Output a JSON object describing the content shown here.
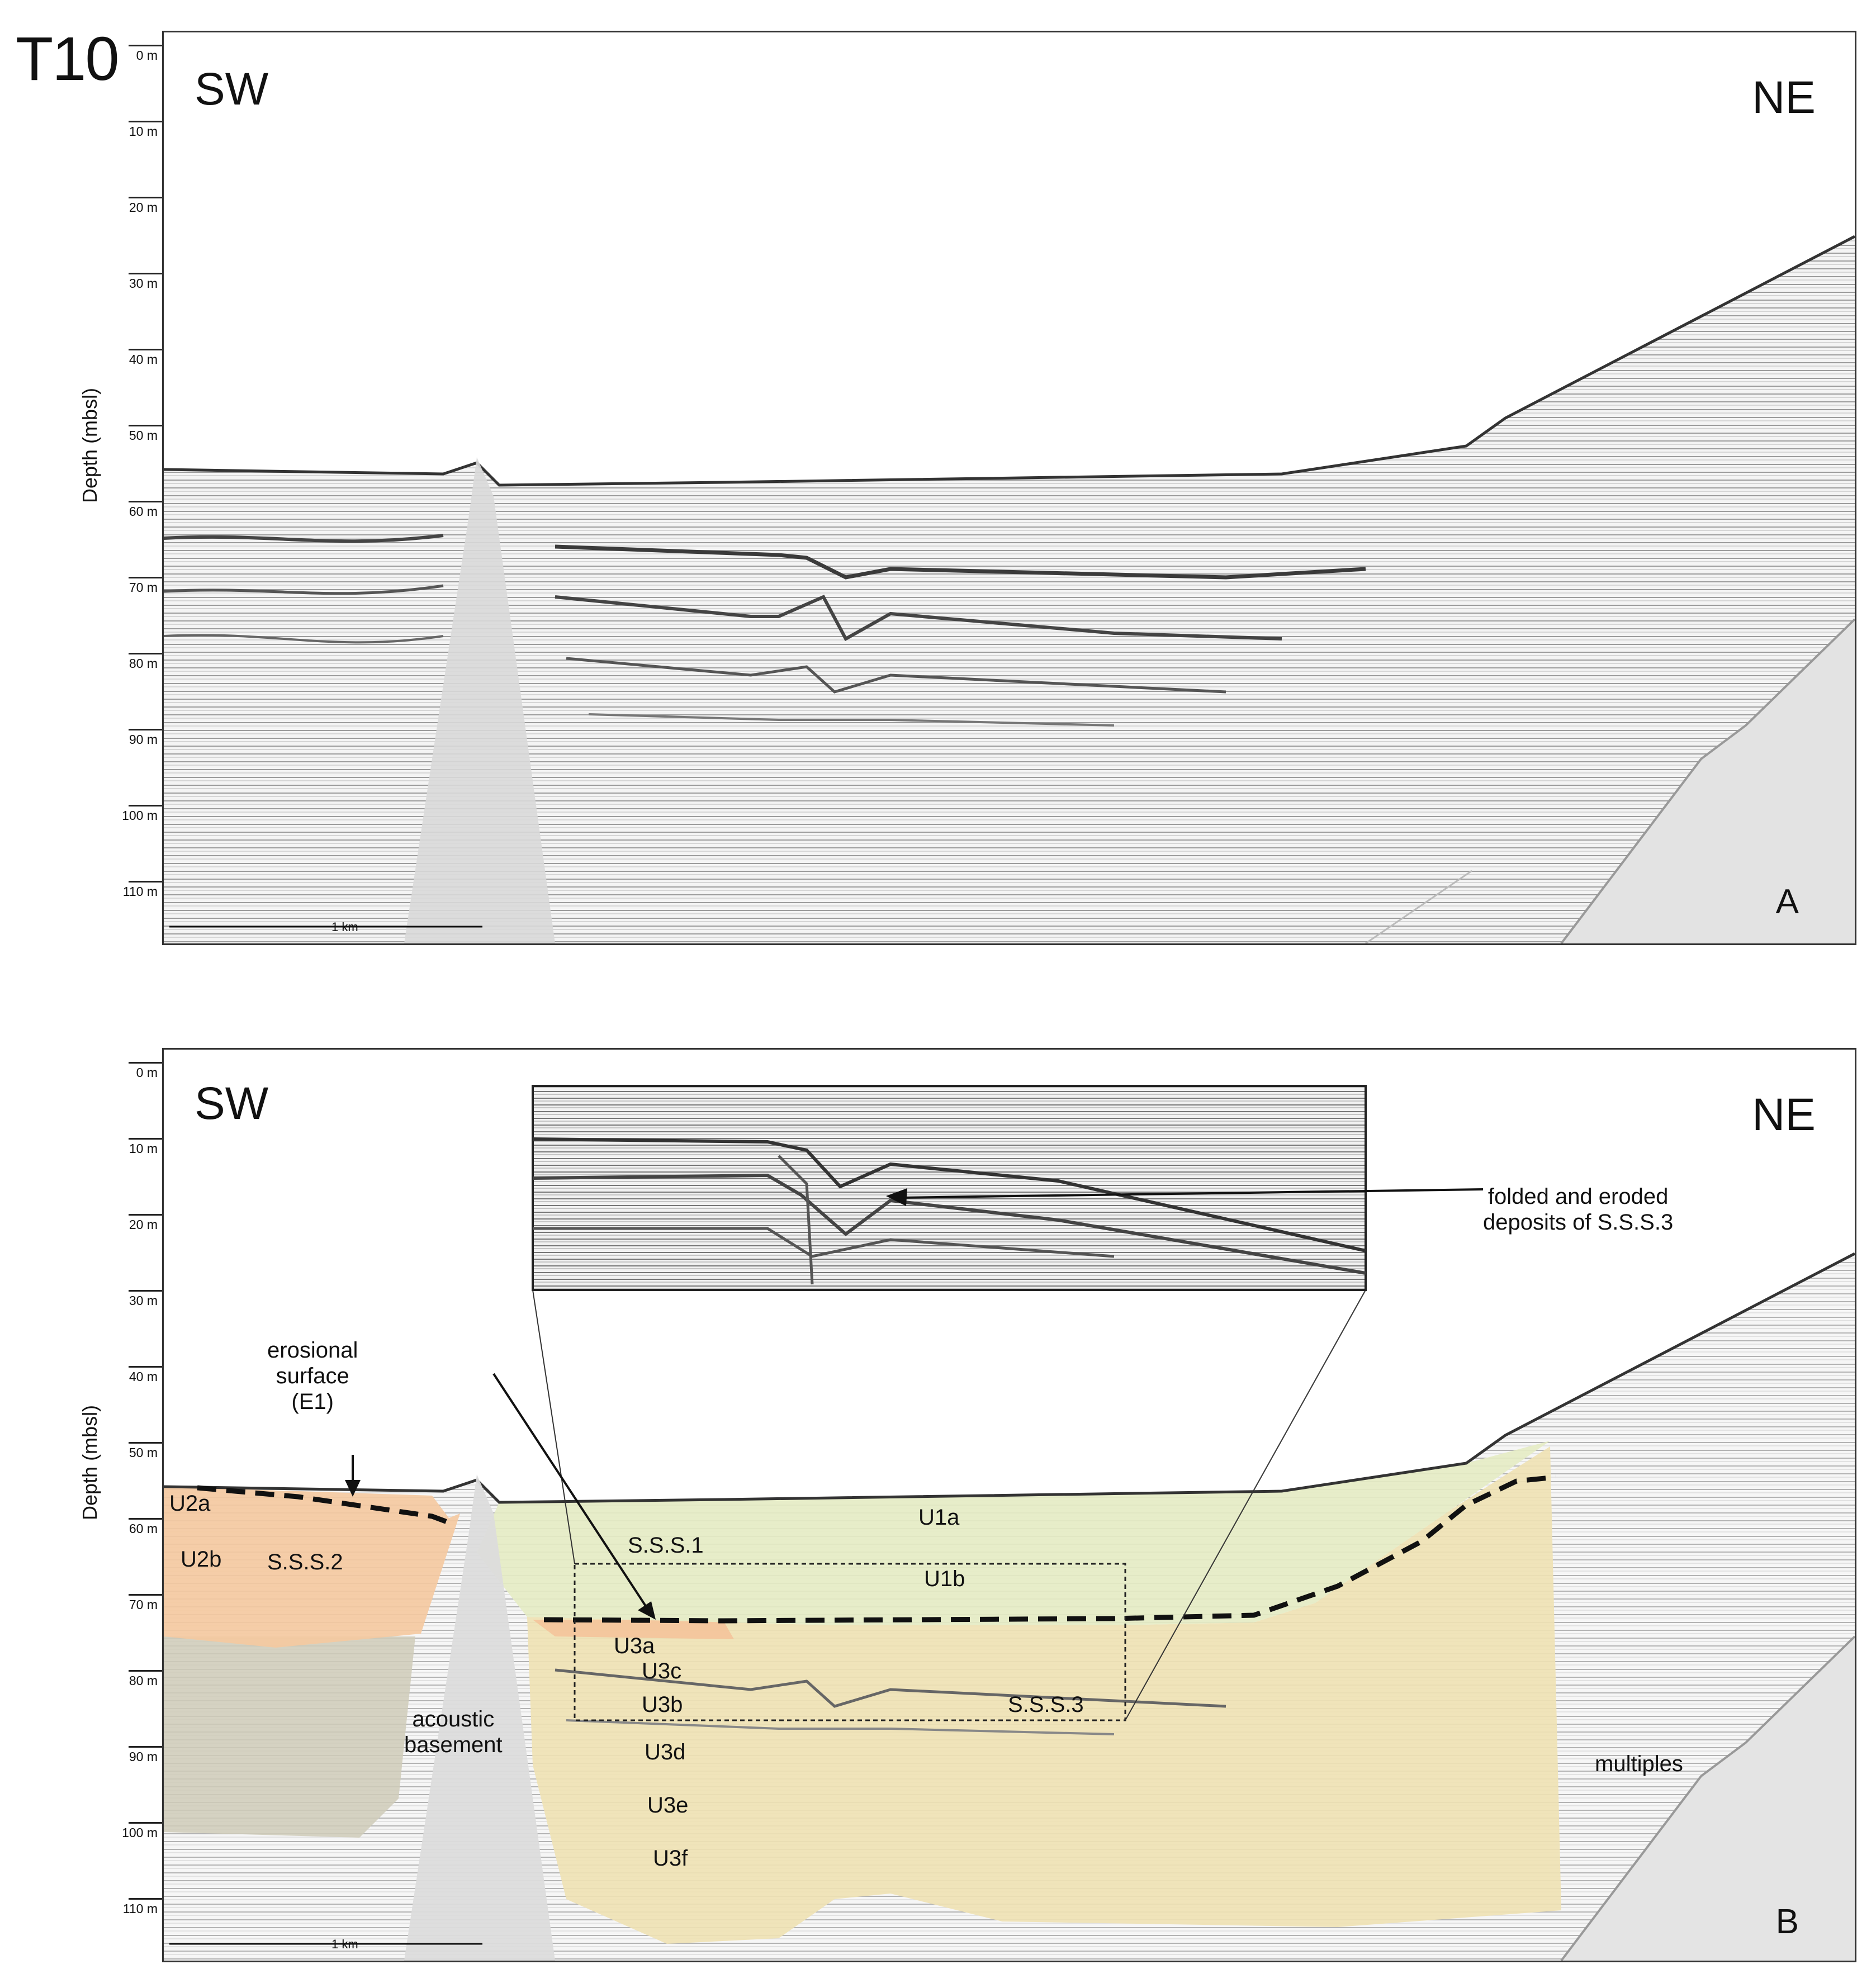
{
  "figure_id": "T10",
  "depth_axis": {
    "label": "Depth (mbsl)",
    "ticks": [
      "0 m",
      "10 m",
      "20 m",
      "30 m",
      "40 m",
      "50 m",
      "60 m",
      "70 m",
      "80 m",
      "90 m",
      "100 m",
      "110 m"
    ]
  },
  "panel_a": {
    "label_left": "SW",
    "label_right": "NE",
    "panel_letter": "A",
    "scale_bar": "1 km"
  },
  "panel_b": {
    "label_left": "SW",
    "label_right": "NE",
    "panel_letter": "B",
    "scale_bar": "1 km",
    "units": [
      "U2a",
      "U2b",
      "S.S.S.2",
      "U1a",
      "S.S.S.1",
      "U1b",
      "U3a",
      "U3c",
      "U3b",
      "S.S.S.3",
      "U3d",
      "U3e",
      "U3f"
    ],
    "annotations": {
      "erosional_surface": "erosional\nsurface\n(E1)",
      "acoustic_basement": "acoustic\nbasement",
      "multiples": "multiples",
      "inset_callout": "folded and eroded\ndeposits of S.S.S.3"
    },
    "colors": {
      "sss1_green": "#e6ecc4",
      "sss2_orange": "#f5c9a0",
      "sss3_yellow": "#efe2b4",
      "older_gray": "#cfcbb8"
    }
  }
}
